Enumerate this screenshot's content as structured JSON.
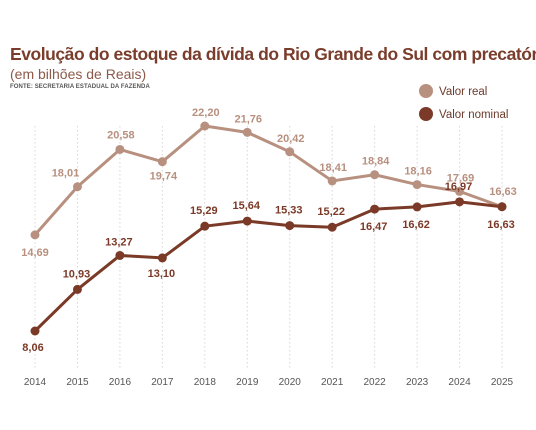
{
  "header": {
    "title": "Evolução do estoque da dívida do Rio Grande do Sul com precatórios",
    "subtitle": "(em bilhões de Reais)",
    "source": "FONTE: SECRETARIA ESTADUAL DA FAZENDA"
  },
  "colors": {
    "real": "#b8907f",
    "nominal": "#7b3a27",
    "gridline": "#d6d6d6",
    "title": "#7a3d2c"
  },
  "chart_data": {
    "type": "line",
    "title": "Evolução do estoque da dívida do Rio Grande do Sul com precatórios",
    "subtitle": "(em bilhões de Reais)",
    "xlabel": "",
    "ylabel": "",
    "ylim": [
      6.5,
      23
    ],
    "grid": "vertical dotted",
    "legend": "top-right",
    "x": [
      "2014",
      "2015",
      "2016",
      "2017",
      "2018",
      "2019",
      "2020",
      "2021",
      "2022",
      "2023",
      "2024",
      "2025"
    ],
    "series": [
      {
        "name": "Valor real",
        "color": "#b8907f",
        "values": [
          14.69,
          18.01,
          20.58,
          19.74,
          22.2,
          21.76,
          20.42,
          18.41,
          18.84,
          18.16,
          17.69,
          16.63
        ],
        "labels": [
          "14,69",
          "18,01",
          "20,58",
          "19,74",
          "22,20",
          "21,76",
          "20,42",
          "18,41",
          "18,84",
          "18,16",
          "17,69",
          "16,63"
        ]
      },
      {
        "name": "Valor nominal",
        "color": "#7b3a27",
        "values": [
          8.06,
          10.93,
          13.27,
          13.1,
          15.29,
          15.64,
          15.33,
          15.22,
          16.47,
          16.62,
          16.97,
          16.63
        ],
        "labels": [
          "8,06",
          "10,93",
          "13,27",
          "13,10",
          "15,29",
          "15,64",
          "15,33",
          "15,22",
          "16,47",
          "16,62",
          "16,97",
          "16,63"
        ]
      }
    ]
  }
}
